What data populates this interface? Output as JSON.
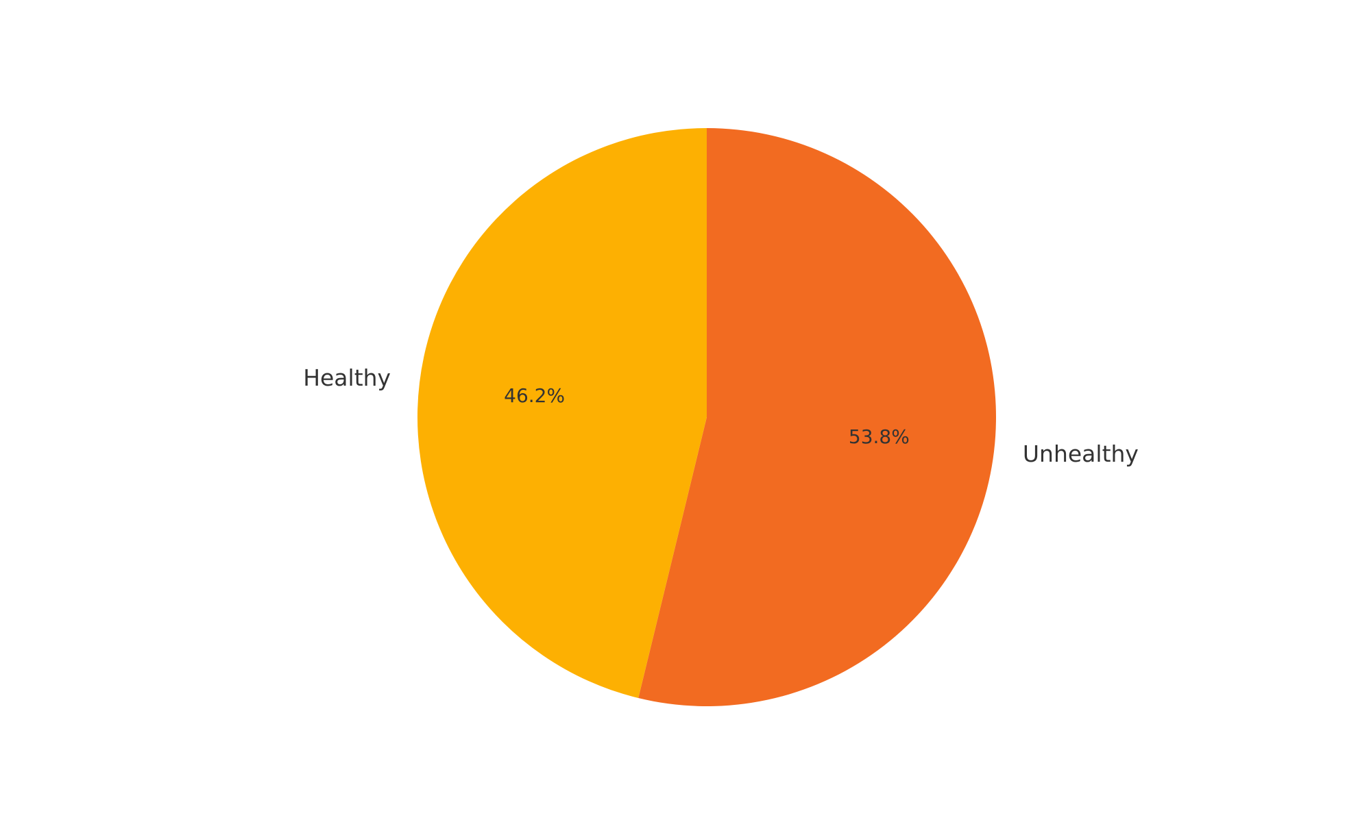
{
  "chart_data": {
    "type": "pie",
    "slices": [
      {
        "label": "Unhealthy",
        "value": 53.8,
        "pct_label": "53.8%",
        "color": "#F26B21"
      },
      {
        "label": "Healthy",
        "value": 46.2,
        "pct_label": "46.2%",
        "color": "#FDB002"
      }
    ],
    "start_angle_deg": 90,
    "direction": "clockwise",
    "legend": "none"
  }
}
